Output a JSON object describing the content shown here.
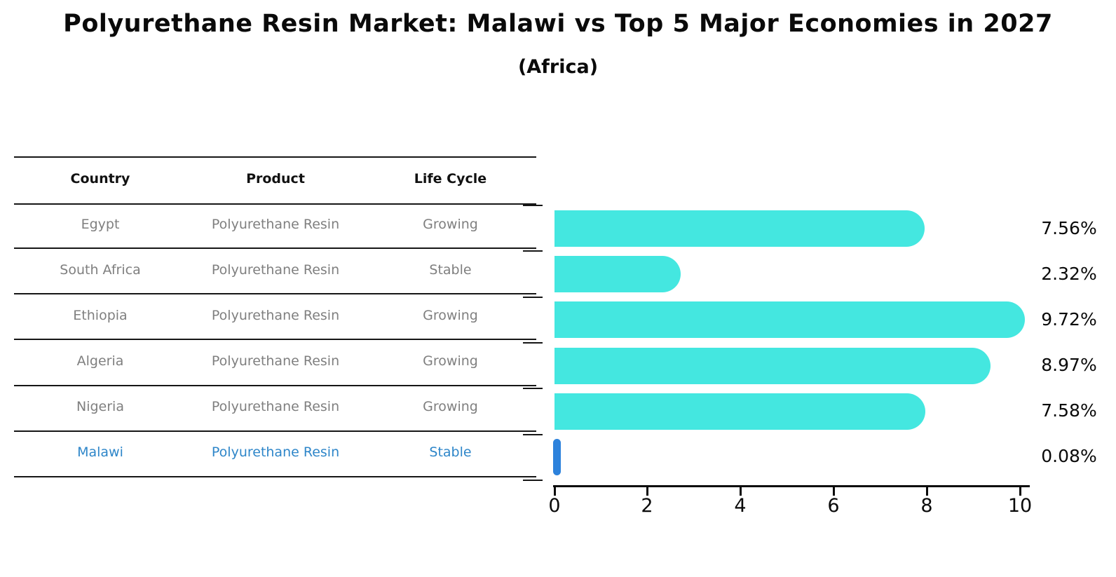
{
  "chart": {
    "title": "Polyurethane Resin Market: Malawi vs Top 5 Major Economies in 2027",
    "subtitle": "(Africa)"
  },
  "table": {
    "headers": [
      "Country",
      "Product",
      "Life Cycle"
    ],
    "rows": [
      {
        "country": "Egypt",
        "product": "Polyurethane Resin",
        "life_cycle": "Growing"
      },
      {
        "country": "South Africa",
        "product": "Polyurethane Resin",
        "life_cycle": "Stable"
      },
      {
        "country": "Ethiopia",
        "product": "Polyurethane Resin",
        "life_cycle": "Growing"
      },
      {
        "country": "Algeria",
        "product": "Polyurethane Resin",
        "life_cycle": "Growing"
      },
      {
        "country": "Nigeria",
        "product": "Polyurethane Resin",
        "life_cycle": "Growing"
      },
      {
        "country": "Malawi",
        "product": "Polyurethane Resin",
        "life_cycle": "Stable"
      }
    ]
  },
  "chart_data": {
    "type": "bar",
    "orientation": "horizontal",
    "title": "Polyurethane Resin Market: Malawi vs Top 5 Major Economies in 2027",
    "subtitle": "(Africa)",
    "categories": [
      "Egypt",
      "South Africa",
      "Ethiopia",
      "Algeria",
      "Nigeria",
      "Malawi"
    ],
    "values": [
      7.56,
      2.32,
      9.72,
      8.97,
      7.58,
      0.08
    ],
    "value_labels": [
      "7.56%",
      "2.32%",
      "9.72%",
      "8.97%",
      "7.58%",
      "0.08%"
    ],
    "x_ticks": [
      "0",
      "2",
      "4",
      "6",
      "8",
      "10"
    ],
    "xlim": [
      0,
      10
    ],
    "grid": false,
    "legend": "none",
    "bar_color": "#44E7E0",
    "highlight_index": 5,
    "highlight_bar_color": "#2D82DC",
    "highlight_text_color": "#2E86C9"
  }
}
